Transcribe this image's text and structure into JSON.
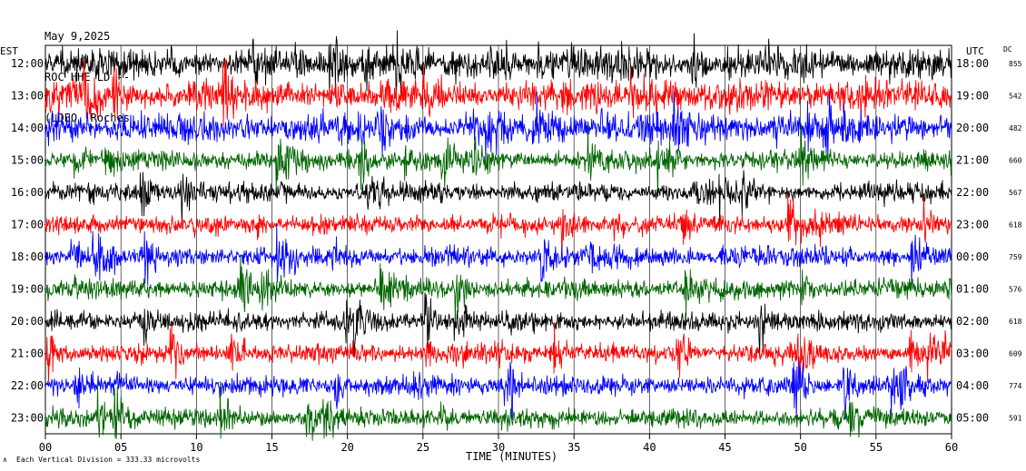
{
  "header": {
    "date": "May 9,2025",
    "station": "ROC HHE LD --",
    "network": "(LDEO, Roches"
  },
  "labels": {
    "left_tz": "EST",
    "right_tz": "UTC",
    "dc_header": "DC",
    "xlabel": "TIME (MINUTES)",
    "footer": "Each Vertical Division =  333.33 microvolts"
  },
  "colors": {
    "black": "#000000",
    "red": "#ff0000",
    "blue": "#0000ff",
    "green": "#006400",
    "grid": "#000000"
  },
  "chart_data": {
    "type": "line",
    "x_range": [
      0,
      60
    ],
    "x_ticks": [
      0,
      5,
      10,
      15,
      20,
      25,
      30,
      35,
      40,
      45,
      50,
      55,
      60
    ],
    "x_tick_labels": [
      "00",
      "05",
      "10",
      "15",
      "20",
      "25",
      "30",
      "35",
      "40",
      "45",
      "50",
      "55",
      "60"
    ],
    "grid": true,
    "rows": [
      {
        "est": "12:00",
        "utc": "18:00",
        "dc": "855",
        "color": "black"
      },
      {
        "est": "13:00",
        "utc": "19:00",
        "dc": "542",
        "color": "red"
      },
      {
        "est": "14:00",
        "utc": "20:00",
        "dc": "482",
        "color": "blue"
      },
      {
        "est": "15:00",
        "utc": "21:00",
        "dc": "660",
        "color": "green"
      },
      {
        "est": "16:00",
        "utc": "22:00",
        "dc": "567",
        "color": "black"
      },
      {
        "est": "17:00",
        "utc": "23:00",
        "dc": "618",
        "color": "red"
      },
      {
        "est": "18:00",
        "utc": "00:00",
        "dc": "759",
        "color": "blue"
      },
      {
        "est": "19:00",
        "utc": "01:00",
        "dc": "576",
        "color": "green"
      },
      {
        "est": "20:00",
        "utc": "02:00",
        "dc": "618",
        "color": "black"
      },
      {
        "est": "21:00",
        "utc": "03:00",
        "dc": "609",
        "color": "red"
      },
      {
        "est": "22:00",
        "utc": "04:00",
        "dc": "774",
        "color": "blue"
      },
      {
        "est": "23:00",
        "utc": "05:00",
        "dc": "591",
        "color": "green"
      }
    ]
  }
}
